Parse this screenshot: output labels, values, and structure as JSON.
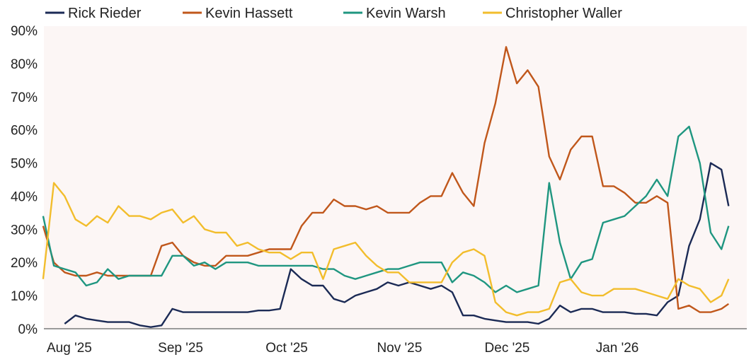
{
  "chart_data": {
    "type": "line",
    "title": "",
    "xlabel": "",
    "ylabel": "",
    "ylim": [
      0,
      90
    ],
    "y_ticks": [
      "0%",
      "10%",
      "20%",
      "30%",
      "40%",
      "50%",
      "60%",
      "70%",
      "80%",
      "90%"
    ],
    "x_ticks": [
      {
        "label": "Aug '25",
        "date": "2025-08-01"
      },
      {
        "label": "Sep '25",
        "date": "2025-09-01"
      },
      {
        "label": "Oct '25",
        "date": "2025-10-01"
      },
      {
        "label": "Nov '25",
        "date": "2025-11-01"
      },
      {
        "label": "Dec '25",
        "date": "2025-12-01"
      },
      {
        "label": "Jan '26",
        "date": "2026-01-01"
      }
    ],
    "grid": false,
    "legend": "top",
    "plot_background": "#fcf6f5",
    "x": [
      "2025-07-31",
      "2025-08-03",
      "2025-08-06",
      "2025-08-09",
      "2025-08-12",
      "2025-08-15",
      "2025-08-18",
      "2025-08-21",
      "2025-08-24",
      "2025-08-27",
      "2025-08-30",
      "2025-09-02",
      "2025-09-05",
      "2025-09-08",
      "2025-09-11",
      "2025-09-14",
      "2025-09-17",
      "2025-09-20",
      "2025-09-23",
      "2025-09-26",
      "2025-09-29",
      "2025-10-02",
      "2025-10-05",
      "2025-10-08",
      "2025-10-11",
      "2025-10-14",
      "2025-10-17",
      "2025-10-20",
      "2025-10-23",
      "2025-10-26",
      "2025-10-29",
      "2025-11-01",
      "2025-11-04",
      "2025-11-07",
      "2025-11-10",
      "2025-11-13",
      "2025-11-16",
      "2025-11-19",
      "2025-11-22",
      "2025-11-25",
      "2025-11-28",
      "2025-12-01",
      "2025-12-04",
      "2025-12-07",
      "2025-12-10",
      "2025-12-13",
      "2025-12-16",
      "2025-12-19",
      "2025-12-22",
      "2025-12-25",
      "2025-12-28",
      "2025-12-31",
      "2026-01-03",
      "2026-01-06",
      "2026-01-09",
      "2026-01-12",
      "2026-01-15",
      "2026-01-18",
      "2026-01-21",
      "2026-01-24",
      "2026-01-27",
      "2026-01-30",
      "2026-02-02",
      "2026-02-05",
      "2026-02-07"
    ],
    "series": [
      {
        "name": "Rick Rieder",
        "color": "#1b2a55",
        "values": [
          null,
          null,
          1.5,
          4,
          3,
          2.5,
          2,
          2,
          2,
          1,
          0.5,
          1,
          6,
          5,
          5,
          5,
          5,
          5,
          5,
          5,
          5.5,
          5.5,
          6,
          18,
          15,
          13,
          13,
          9,
          8,
          10,
          11,
          12,
          14,
          13,
          14,
          13,
          12,
          13,
          11,
          4,
          4,
          3,
          2.5,
          2,
          2,
          2,
          1.5,
          3,
          7,
          5,
          6,
          6,
          5,
          5,
          5,
          4.5,
          4.5,
          4,
          8,
          10,
          25,
          33,
          50,
          48,
          37
        ]
      },
      {
        "name": "Kevin Hassett",
        "color": "#c0571b",
        "values": [
          31,
          20,
          17,
          16,
          16,
          17,
          16,
          16,
          16,
          16,
          16,
          25,
          26,
          22,
          20,
          19,
          19,
          22,
          22,
          22,
          23,
          24,
          24,
          24,
          31,
          35,
          35,
          39,
          37,
          37,
          36,
          37,
          35,
          35,
          35,
          38,
          40,
          40,
          47,
          41,
          37,
          56,
          68,
          85,
          74,
          78,
          73,
          52,
          45,
          54,
          58,
          58,
          43,
          43,
          41,
          38,
          38,
          40,
          38,
          6,
          7,
          5,
          5,
          6,
          7.5
        ]
      },
      {
        "name": "Kevin Warsh",
        "color": "#1f9680",
        "values": [
          34,
          19,
          18,
          17,
          13,
          14,
          18,
          15,
          16,
          16,
          16,
          16,
          22,
          22,
          19,
          20,
          18,
          20,
          20,
          20,
          19,
          19,
          19,
          19,
          19,
          19,
          18,
          18,
          16,
          15,
          16,
          17,
          18,
          18,
          19,
          20,
          20,
          20,
          14,
          17,
          16,
          14,
          11,
          13,
          11,
          12,
          13,
          44,
          26,
          15,
          20,
          21,
          32,
          33,
          34,
          37,
          40,
          45,
          40,
          58,
          61,
          50,
          29,
          24,
          31
        ]
      },
      {
        "name": "Christopher Waller",
        "color": "#f2bd2c",
        "values": [
          15,
          44,
          40,
          33,
          31,
          34,
          32,
          37,
          34,
          34,
          33,
          35,
          36,
          32,
          34,
          30,
          29,
          29,
          25,
          26,
          24,
          23,
          23,
          21,
          23,
          23,
          15,
          24,
          25,
          26,
          22,
          19,
          17,
          17,
          14,
          14,
          14,
          14,
          20,
          23,
          24,
          22,
          8,
          5,
          4,
          5,
          5,
          6,
          14,
          15,
          11,
          10,
          10,
          12,
          12,
          12,
          11,
          10,
          9,
          15,
          13,
          12,
          8,
          10,
          15
        ]
      }
    ]
  }
}
